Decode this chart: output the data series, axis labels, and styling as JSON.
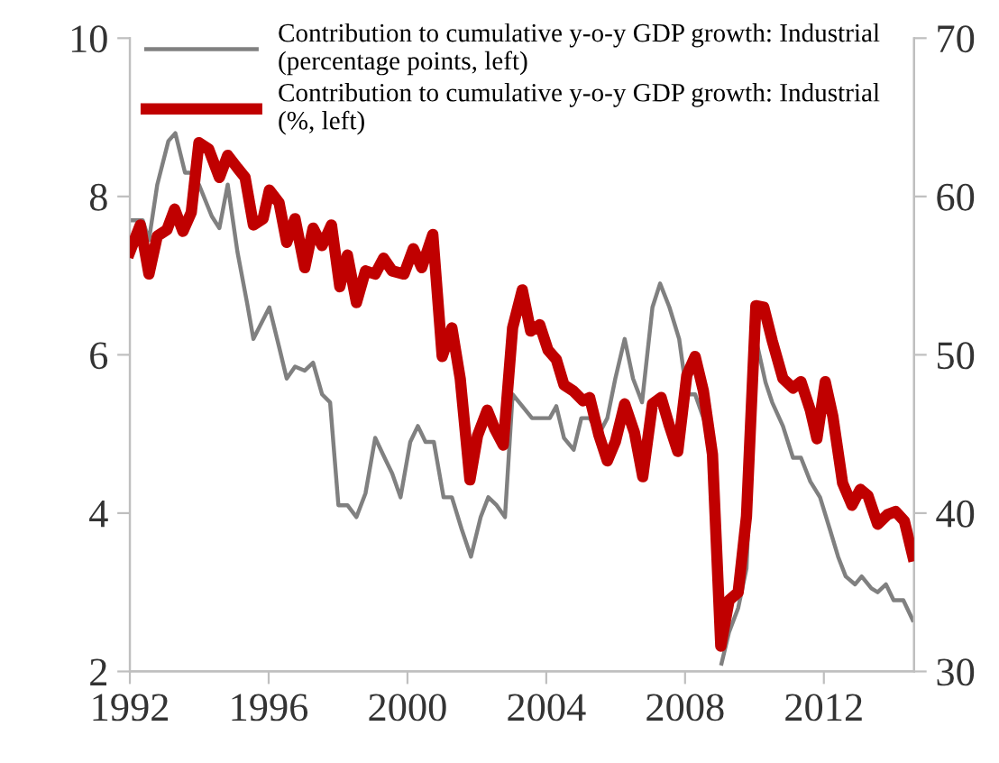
{
  "chart_data": {
    "type": "line",
    "xlim": [
      1992,
      2014.6
    ],
    "xticks": [
      1992,
      1996,
      2000,
      2004,
      2008,
      2012
    ],
    "ylim": [
      2,
      10
    ],
    "yticks": [
      2,
      4,
      6,
      8,
      10
    ],
    "y2lim": [
      30,
      70
    ],
    "y2ticks": [
      30,
      40,
      50,
      60,
      70
    ],
    "grid": false,
    "legend": "top right",
    "marker": "none",
    "line_style": "solid",
    "series": [
      {
        "name": "Contribution to cumulative y-o-y GDP growth: Industrial\n(percentage points, left)",
        "color": "#808080",
        "x": [
          1992.0,
          1992.37,
          1992.55,
          1992.79,
          1993.11,
          1993.31,
          1993.59,
          1993.81,
          1993.99,
          1994.36,
          1994.58,
          1994.82,
          1995.1,
          1995.38,
          1995.56,
          1996.02,
          1996.3,
          1996.52,
          1996.76,
          1997.04,
          1997.28,
          1997.54,
          1997.77,
          1998.01,
          1998.27,
          1998.53,
          1998.79,
          1999.07,
          1999.34,
          1999.56,
          1999.8,
          2000.08,
          2000.3,
          2000.52,
          2000.76,
          2001.04,
          2001.28,
          2001.56,
          2001.83,
          2002.11,
          2002.33,
          2002.57,
          2002.81,
          2003.03,
          2003.31,
          2003.59,
          2003.86,
          2004.1,
          2004.29,
          2004.51,
          2004.79,
          2005.01,
          2005.25,
          2005.52,
          2005.76,
          2005.99,
          2006.26,
          2006.5,
          2006.76,
          2007.06,
          2007.28,
          2007.55,
          2007.83,
          2008.05,
          2008.29,
          2008.53,
          2008.79,
          2009.05,
          2009.27,
          2009.53,
          2009.77,
          2010.04,
          2010.32,
          2010.51,
          2010.82,
          2011.11,
          2011.34,
          2011.61,
          2011.89,
          2012.17,
          2012.41,
          2012.63,
          2012.9,
          2013.09,
          2013.37,
          2013.55,
          2013.79,
          2014.01,
          2014.29,
          2014.56
        ],
        "values": [
          7.7,
          7.7,
          7.45,
          8.15,
          8.7,
          8.8,
          8.3,
          8.3,
          8.15,
          7.75,
          7.6,
          8.15,
          7.3,
          6.65,
          6.2,
          6.6,
          6.1,
          5.7,
          5.85,
          5.8,
          5.9,
          5.5,
          5.4,
          4.1,
          4.1,
          3.95,
          4.25,
          4.95,
          4.7,
          4.5,
          4.2,
          4.9,
          5.1,
          4.9,
          4.9,
          4.2,
          4.2,
          3.8,
          3.45,
          3.95,
          4.2,
          4.1,
          3.95,
          5.5,
          5.35,
          5.2,
          5.2,
          5.2,
          5.35,
          4.95,
          4.8,
          5.2,
          5.2,
          5.0,
          5.2,
          5.7,
          6.2,
          5.7,
          5.4,
          6.6,
          6.9,
          6.6,
          6.2,
          5.5,
          5.5,
          5.2,
          null,
          2.1,
          2.5,
          2.8,
          3.3,
          6.2,
          5.65,
          5.4,
          5.1,
          4.7,
          4.7,
          4.4,
          4.2,
          3.8,
          3.45,
          3.2,
          3.1,
          3.2,
          3.05,
          3.0,
          3.1,
          2.9,
          2.9,
          2.65
        ]
      },
      {
        "name": "Contribution to cumulative y-o-y GDP growth: Industrial\n(%, left)",
        "color": "#c00000",
        "axis": "y2",
        "x": [
          1992.0,
          1992.3,
          1992.55,
          1992.79,
          1993.07,
          1993.29,
          1993.53,
          1993.77,
          1993.99,
          1994.27,
          1994.58,
          1994.82,
          1995.1,
          1995.32,
          1995.56,
          1995.84,
          1996.02,
          1996.3,
          1996.52,
          1996.76,
          1997.04,
          1997.28,
          1997.54,
          1997.81,
          1998.05,
          1998.27,
          1998.53,
          1998.79,
          1999.07,
          1999.31,
          1999.56,
          1999.9,
          2000.17,
          2000.41,
          2000.73,
          2001.0,
          2001.28,
          2001.52,
          2001.8,
          2002.02,
          2002.3,
          2002.52,
          2002.76,
          2003.03,
          2003.31,
          2003.55,
          2003.81,
          2004.05,
          2004.29,
          2004.51,
          2004.79,
          2005.06,
          2005.25,
          2005.52,
          2005.76,
          2005.99,
          2006.26,
          2006.54,
          2006.78,
          2007.06,
          2007.31,
          2007.55,
          2007.79,
          2008.05,
          2008.29,
          2008.53,
          2008.79,
          2009.03,
          2009.27,
          2009.53,
          2009.77,
          2010.04,
          2010.27,
          2010.51,
          2010.82,
          2011.11,
          2011.34,
          2011.61,
          2011.8,
          2012.04,
          2012.26,
          2012.54,
          2012.81,
          2013.05,
          2013.27,
          2013.55,
          2013.83,
          2014.07,
          2014.32,
          2014.56
        ],
        "values": [
          56.5,
          58.2,
          55.1,
          57.5,
          57.9,
          59.2,
          57.8,
          59.0,
          63.4,
          63.0,
          61.2,
          62.6,
          61.8,
          61.2,
          58.2,
          58.6,
          60.4,
          59.6,
          57.1,
          58.6,
          55.5,
          58.0,
          56.9,
          58.2,
          54.3,
          56.3,
          53.3,
          55.3,
          55.1,
          56.1,
          55.3,
          55.1,
          56.7,
          55.5,
          57.6,
          49.9,
          51.7,
          48.5,
          42.1,
          44.9,
          46.5,
          45.3,
          44.3,
          51.7,
          54.1,
          51.5,
          51.9,
          50.3,
          49.7,
          48.1,
          47.7,
          47.1,
          47.3,
          44.9,
          43.3,
          44.5,
          46.9,
          45.1,
          42.3,
          46.9,
          47.3,
          45.5,
          43.9,
          48.7,
          49.9,
          47.7,
          43.7,
          31.6,
          34.5,
          35.0,
          39.8,
          53.1,
          53.0,
          50.9,
          48.5,
          47.9,
          48.3,
          46.5,
          44.7,
          48.3,
          46.1,
          41.9,
          40.5,
          41.5,
          41.1,
          39.3,
          39.9,
          40.1,
          39.5,
          37.3
        ]
      }
    ]
  }
}
